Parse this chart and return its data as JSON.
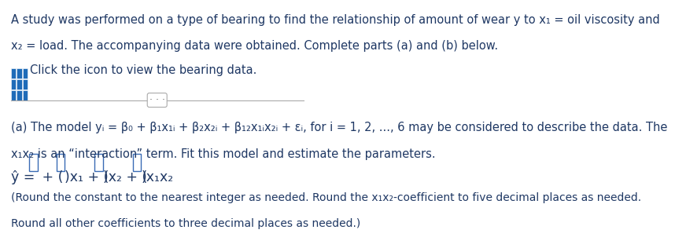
{
  "bg_color": "#ffffff",
  "text_color": "#1f3864",
  "icon_color": "#1e6bb8",
  "divider_color": "#aaaaaa",
  "line1": "A study was performed on a type of bearing to find the relationship of amount of wear y to x₁ = oil viscosity and",
  "line2": "x₂ = load. The accompanying data were obtained. Complete parts (a) and (b) below.",
  "line3": "Click the icon to view the bearing data.",
  "part_a_line1": "(a) The model yᵢ = β₀ + β₁x₁ᵢ + β₂x₂ᵢ + β₁₂x₁ᵢx₂ᵢ + εᵢ, for i = 1, 2, ..., 6 may be considered to describe the data. The",
  "part_a_line2": "x₁x₂ is an “interaction” term. Fit this model and estimate the parameters.",
  "eq_prefix": "ŷ = ",
  "eq_plus_open": " + (",
  "eq_x1": ")x₁ + (",
  "eq_x2": ")x₂ + (",
  "eq_x1x2": ")x₁x₂",
  "round_note1": "(Round the constant to the nearest integer as needed. Round the x₁x₂-coefficient to five decimal places as needed.",
  "round_note2": "Round all other coefficients to three decimal places as needed.)",
  "font_size_main": 10.5,
  "font_size_eq": 12.5,
  "font_size_note": 10,
  "box_edge_color": "#3a6bb5",
  "divider_label": "· · ·"
}
